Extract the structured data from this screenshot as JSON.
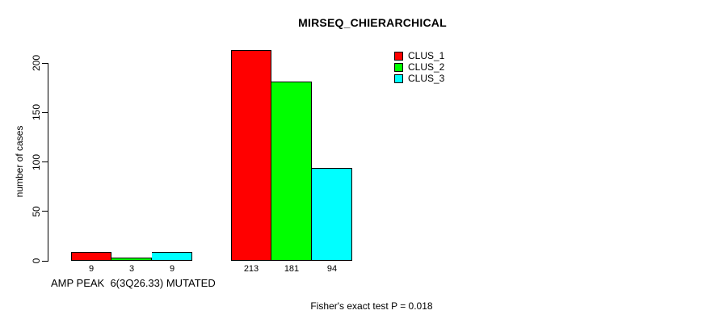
{
  "page": {
    "background": "#ffffff"
  },
  "chart_data": {
    "type": "bar",
    "title": "MIRSEQ_CHIERARCHICAL",
    "xlabel": "",
    "ylabel": "number of cases",
    "ylim": [
      0,
      213
    ],
    "yticks": [
      0,
      50,
      100,
      150,
      200
    ],
    "grid": false,
    "legend_position": "top-right",
    "series": [
      {
        "name": "CLUS_1",
        "color": "#ff0000"
      },
      {
        "name": "CLUS_2",
        "color": "#00ff00"
      },
      {
        "name": "CLUS_3",
        "color": "#00ffff"
      }
    ],
    "groups": [
      {
        "label": "AMP PEAK  6(3Q26.33) MUTATED",
        "values": [
          9,
          3,
          9
        ],
        "bar_labels": [
          "9",
          "3",
          "9"
        ]
      },
      {
        "label": "",
        "values": [
          213,
          181,
          94
        ],
        "bar_labels": [
          "213",
          "181",
          "94"
        ]
      }
    ],
    "annotation": "Fisher's exact test P = 0.018"
  }
}
